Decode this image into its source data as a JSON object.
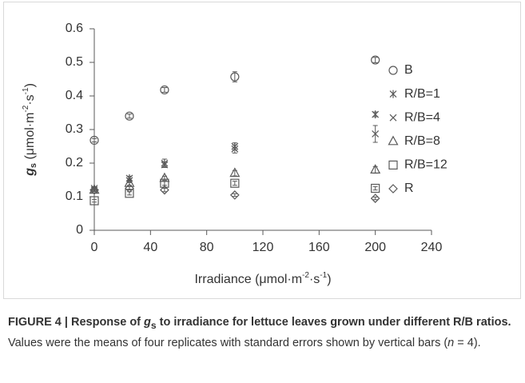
{
  "chart_data": {
    "type": "scatter",
    "ylabel": {
      "symbol": "g",
      "sub": "s",
      "unit": " (μmol·m",
      "sup1": "-2",
      "mid": "·s",
      "sup2": "-1",
      "end": ")"
    },
    "xlabel": {
      "text": "Irradiance (μmol·m",
      "sup1": "-2",
      "mid": "·s",
      "sup2": "-1",
      "end": ")"
    },
    "x": [
      0,
      25,
      50,
      100,
      200
    ],
    "xlim": [
      0,
      240
    ],
    "xticks": [
      0,
      40,
      80,
      120,
      160,
      200,
      240
    ],
    "ylim": [
      0,
      0.6
    ],
    "yticks": [
      0,
      0.1,
      0.2,
      0.3,
      0.4,
      0.5,
      0.6
    ],
    "series": [
      {
        "name": "B",
        "marker": "circle",
        "color": "#595959",
        "values": [
          0.268,
          0.34,
          0.418,
          0.457,
          0.507
        ],
        "errors": [
          0.005,
          0.006,
          0.007,
          0.015,
          0.008
        ]
      },
      {
        "name": "R/B=1",
        "marker": "asterisk",
        "color": "#595959",
        "values": [
          0.125,
          0.155,
          0.2,
          0.25,
          0.345
        ],
        "errors": [
          0.004,
          0.006,
          0.012,
          0.01,
          0.007
        ]
      },
      {
        "name": "R/B=4",
        "marker": "x",
        "color": "#595959",
        "values": [
          0.12,
          0.148,
          0.195,
          0.242,
          0.287
        ],
        "errors": [
          0.004,
          0.006,
          0.008,
          0.012,
          0.025
        ]
      },
      {
        "name": "R/B=8",
        "marker": "triangle",
        "color": "#595959",
        "values": [
          0.12,
          0.14,
          0.155,
          0.17,
          0.18
        ],
        "errors": [
          0.004,
          0.006,
          0.006,
          0.008,
          0.01
        ]
      },
      {
        "name": "R/B=12",
        "marker": "square",
        "color": "#595959",
        "values": [
          0.088,
          0.11,
          0.14,
          0.14,
          0.125
        ],
        "errors": [
          0.004,
          0.005,
          0.006,
          0.006,
          0.005
        ]
      },
      {
        "name": "R",
        "marker": "diamond",
        "color": "#595959",
        "values": [
          0.12,
          0.125,
          0.12,
          0.105,
          0.095
        ],
        "errors": [
          0.004,
          0.005,
          0.005,
          0.004,
          0.004
        ]
      }
    ]
  },
  "caption": {
    "label": "FIGURE 4 | Response of ",
    "symbol": "g",
    "sub": "s",
    "title": " to irradiance for lettuce leaves grown under different R/B ratios.",
    "text": " Values were the means of four replicates with standard errors shown by vertical bars (",
    "n": "n",
    "eq": " = 4)."
  }
}
